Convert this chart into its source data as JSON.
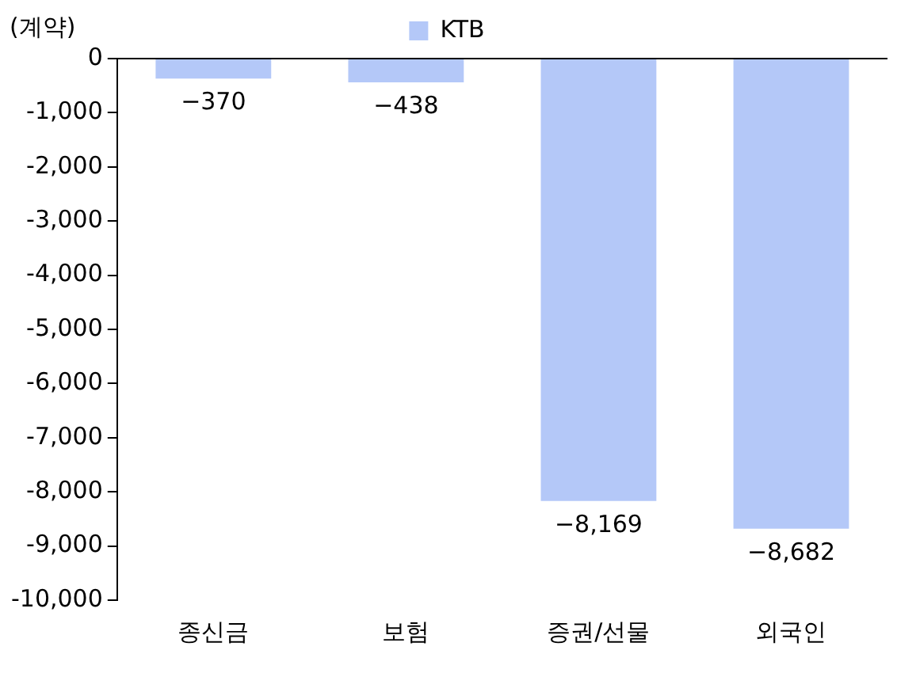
{
  "chart_data": {
    "type": "bar",
    "ylabel": "(계약)",
    "categories": [
      "종신금",
      "보험",
      "증권/선물",
      "외국인"
    ],
    "series": [
      {
        "name": "KTB",
        "color": "#b4c8f8",
        "values": [
          -370,
          -438,
          -8169,
          -8682
        ],
        "value_labels": [
          "−370",
          "−438",
          "−8,169",
          "−8,682"
        ]
      }
    ],
    "ylim": [
      -10000,
      0
    ],
    "yticks": [
      {
        "value": -10000,
        "label": "-10,000"
      },
      {
        "value": -9000,
        "label": "-9,000"
      },
      {
        "value": -8000,
        "label": "-8,000"
      },
      {
        "value": -7000,
        "label": "-7,000"
      },
      {
        "value": -6000,
        "label": "-6,000"
      },
      {
        "value": -5000,
        "label": "-5,000"
      },
      {
        "value": -4000,
        "label": "-4,000"
      },
      {
        "value": -3000,
        "label": "-3,000"
      },
      {
        "value": -2000,
        "label": "-2,000"
      },
      {
        "value": -1000,
        "label": "-1,000"
      },
      0
    ],
    "grid": false,
    "legend": "top"
  }
}
